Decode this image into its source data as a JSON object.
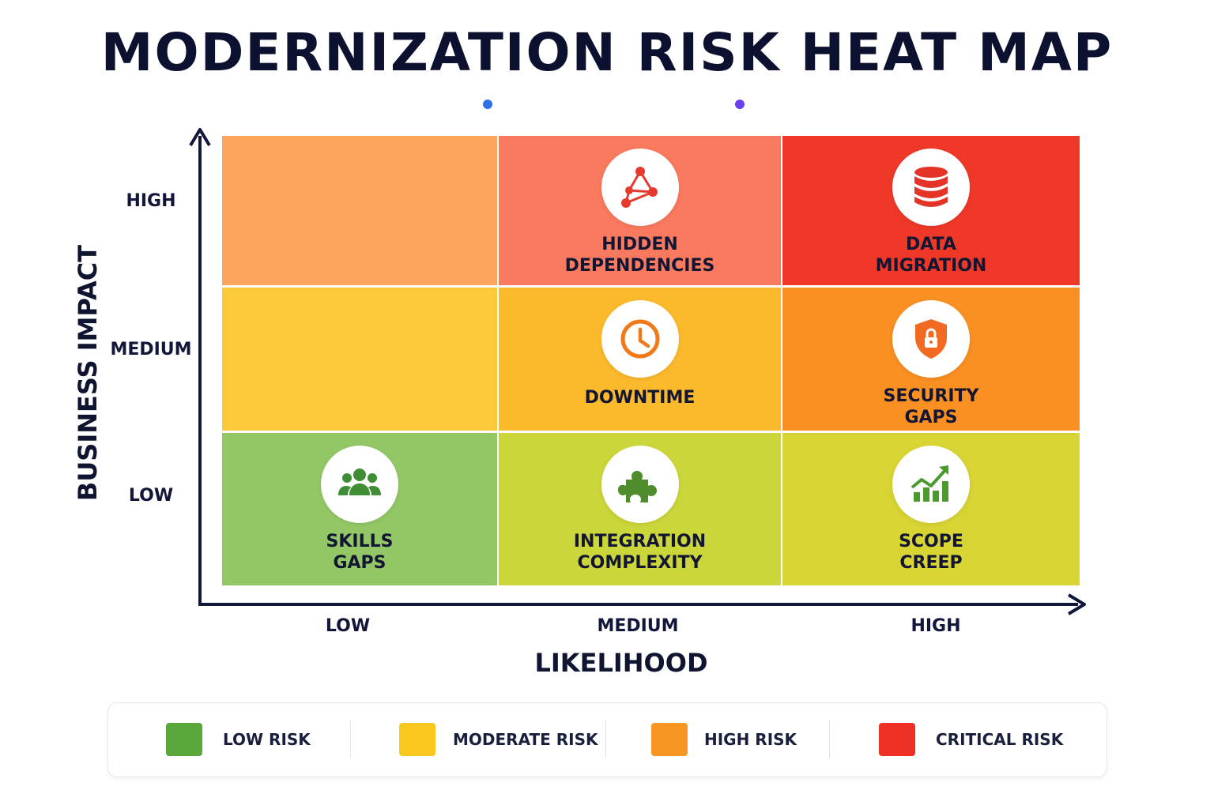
{
  "title": "MODERNIZATION RISK HEAT MAP",
  "chart_data": {
    "type": "heatmap",
    "title": "MODERNIZATION RISK HEAT MAP",
    "xlabel": "LIKELIHOOD",
    "ylabel": "BUSINESS IMPACT",
    "x_categories": [
      "LOW",
      "MEDIUM",
      "HIGH"
    ],
    "y_categories": [
      "HIGH",
      "MEDIUM",
      "LOW"
    ],
    "cells": [
      {
        "impact": "HIGH",
        "likelihood": "LOW",
        "risk_level": "high",
        "item": ""
      },
      {
        "impact": "HIGH",
        "likelihood": "MEDIUM",
        "risk_level": "critical",
        "item": "HIDDEN\nDEPENDENCIES",
        "icon": "network-icon"
      },
      {
        "impact": "HIGH",
        "likelihood": "HIGH",
        "risk_level": "critical",
        "item": "DATA\nMIGRATION",
        "icon": "database-icon"
      },
      {
        "impact": "MEDIUM",
        "likelihood": "LOW",
        "risk_level": "moderate",
        "item": ""
      },
      {
        "impact": "MEDIUM",
        "likelihood": "MEDIUM",
        "risk_level": "moderate",
        "item": "DOWNTIME",
        "icon": "clock-icon"
      },
      {
        "impact": "MEDIUM",
        "likelihood": "HIGH",
        "risk_level": "high",
        "item": "SECURITY\nGAPS",
        "icon": "shield-lock-icon"
      },
      {
        "impact": "LOW",
        "likelihood": "LOW",
        "risk_level": "low",
        "item": "SKILLS\nGAPS",
        "icon": "team-icon"
      },
      {
        "impact": "LOW",
        "likelihood": "MEDIUM",
        "risk_level": "low-moderate",
        "item": "INTEGRATION\nCOMPLEXITY",
        "icon": "puzzle-icon"
      },
      {
        "impact": "LOW",
        "likelihood": "HIGH",
        "risk_level": "low-moderate",
        "item": "SCOPE\nCREEP",
        "icon": "growth-chart-icon"
      }
    ],
    "legend": [
      {
        "label": "LOW RISK",
        "color": "#5aa83c"
      },
      {
        "label": "MODERATE RISK",
        "color": "#f8c81e"
      },
      {
        "label": "HIGH RISK",
        "color": "#f89624"
      },
      {
        "label": "CRITICAL RISK",
        "color": "#ee3124"
      }
    ],
    "legend_placement": "bottom"
  },
  "colors": {
    "title": "#0c1130",
    "axis": "#12163a",
    "accent_start": "#2f6fe8",
    "accent_end": "#6a3ff0",
    "cell_fills": {
      "HIGH-LOW": "#fca55c",
      "HIGH-MEDIUM": "#f97a5e",
      "HIGH-HIGH": "#ef3828",
      "MEDIUM-LOW": "#fcc93a",
      "MEDIUM-MEDIUM": "#fbb92c",
      "MEDIUM-HIGH": "#fa8f22",
      "LOW-LOW": "#93c765",
      "LOW-MEDIUM": "#cbd63a",
      "LOW-HIGH": "#d8d434"
    }
  }
}
